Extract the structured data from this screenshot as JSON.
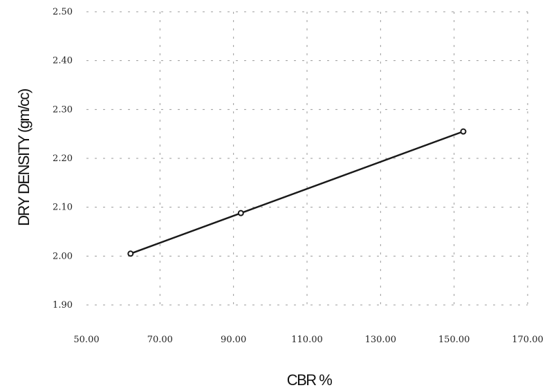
{
  "chart_data": {
    "type": "line",
    "title": "",
    "xlabel": "CBR %",
    "ylabel": "DRY DENSITY (gm/cc)",
    "xlim": [
      50,
      170
    ],
    "ylim": [
      1.9,
      2.5
    ],
    "x_ticks": [
      "50.00",
      "70.00",
      "90.00",
      "110.00",
      "130.00",
      "150.00",
      "170.00"
    ],
    "y_ticks": [
      "1.90",
      "2.00",
      "2.10",
      "2.20",
      "2.30",
      "2.40",
      "2.50"
    ],
    "grid": true,
    "series": [
      {
        "x": [
          62,
          92,
          152.5
        ],
        "y": [
          2.005,
          2.088,
          2.255
        ]
      }
    ],
    "colors": {
      "line": "#1a1a1a",
      "marker": "#1a1a1a"
    }
  }
}
